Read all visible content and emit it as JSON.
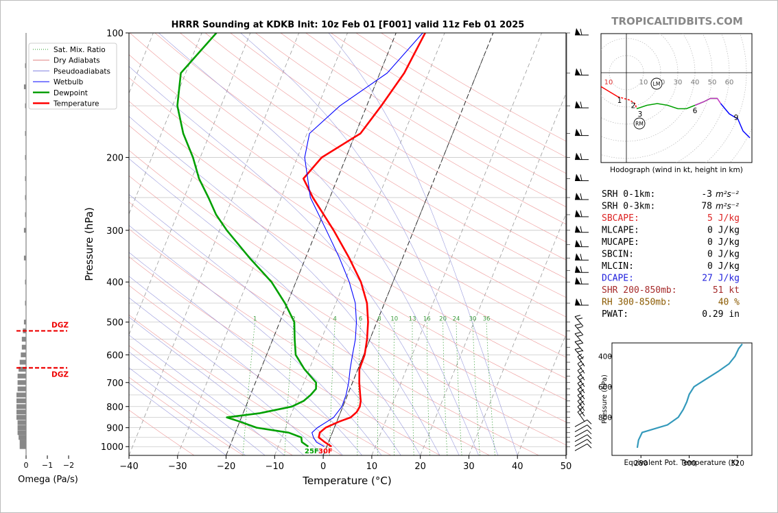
{
  "header": {
    "title": "HRRR Sounding at KDKB Init: 10z Feb 01 [F001] valid 11z Feb 01 2025",
    "watermark": "TROPICALTIDBITS.COM"
  },
  "legend": [
    {
      "label": "Sat. Mix. Ratio",
      "color": "#2a9a2a",
      "style": "dotted"
    },
    {
      "label": "Dry Adiabats",
      "color": "#e08080",
      "style": "solid"
    },
    {
      "label": "Pseudoadiabats",
      "color": "#8080e0",
      "style": "solid"
    },
    {
      "label": "Wetbulb",
      "color": "#0000ff",
      "style": "solid"
    },
    {
      "label": "Dewpoint",
      "color": "#00a000",
      "style": "thick"
    },
    {
      "label": "Temperature",
      "color": "#ff0000",
      "style": "thick"
    }
  ],
  "chart_data": [
    {
      "type": "line",
      "name": "skew-t",
      "xlabel": "Temperature (°C)",
      "ylabel": "Pressure (hPa)",
      "x_ticks": [
        "−40",
        "−30",
        "−20",
        "−10",
        "0",
        "10",
        "20",
        "30",
        "40",
        "50"
      ],
      "y_ticks": [
        "100",
        "200",
        "300",
        "400",
        "500",
        "600",
        "700",
        "800",
        "900",
        "1000"
      ],
      "xlim": [
        -40,
        50
      ],
      "ylim": [
        1050,
        100
      ],
      "y_scale": "log",
      "mixing_ratio_labels": [
        "1",
        "2",
        "4",
        "6",
        "8",
        "10",
        "13",
        "16",
        "20",
        "24",
        "30",
        "36"
      ],
      "surface_labels": {
        "dewpoint": "25F",
        "temperature": "30F"
      },
      "series": [
        {
          "name": "Temperature",
          "color": "#ff0000",
          "points": [
            [
              1000,
              1.0
            ],
            [
              975,
              -0.8
            ],
            [
              950,
              -2.4
            ],
            [
              925,
              -2.6
            ],
            [
              900,
              -1.8
            ],
            [
              870,
              0.5
            ],
            [
              850,
              2.5
            ],
            [
              825,
              3.3
            ],
            [
              800,
              3.5
            ],
            [
              775,
              3.2
            ],
            [
              750,
              2.6
            ],
            [
              700,
              1.4
            ],
            [
              650,
              0.3
            ],
            [
              600,
              0.2
            ],
            [
              550,
              -0.6
            ],
            [
              500,
              -1.8
            ],
            [
              450,
              -3.6
            ],
            [
              400,
              -6.6
            ],
            [
              350,
              -11.0
            ],
            [
              300,
              -16.5
            ],
            [
              250,
              -23.5
            ],
            [
              225,
              -27.0
            ],
            [
              200,
              -25.0
            ],
            [
              175,
              -19.0
            ],
            [
              150,
              -17.0
            ],
            [
              125,
              -15.0
            ],
            [
              100,
              -14.0
            ]
          ]
        },
        {
          "name": "Wetbulb",
          "color": "#0000ff",
          "points": [
            [
              1000,
              -0.5
            ],
            [
              975,
              -2.5
            ],
            [
              950,
              -3.5
            ],
            [
              925,
              -4.2
            ],
            [
              900,
              -3.5
            ],
            [
              870,
              -2.0
            ],
            [
              850,
              -1.0
            ],
            [
              800,
              -0.2
            ],
            [
              750,
              -0.3
            ],
            [
              700,
              -0.8
            ],
            [
              650,
              -1.6
            ],
            [
              600,
              -2.3
            ],
            [
              550,
              -3.0
            ],
            [
              500,
              -4.2
            ],
            [
              450,
              -6.0
            ],
            [
              400,
              -9.0
            ],
            [
              350,
              -13.0
            ],
            [
              300,
              -18.0
            ],
            [
              250,
              -24.0
            ],
            [
              200,
              -28.5
            ],
            [
              175,
              -29.5
            ],
            [
              150,
              -25.5
            ],
            [
              125,
              -18.5
            ],
            [
              100,
              -14.5
            ]
          ]
        },
        {
          "name": "Dewpoint",
          "color": "#00a000",
          "points": [
            [
              1000,
              -3.8
            ],
            [
              975,
              -5.5
            ],
            [
              950,
              -6.0
            ],
            [
              925,
              -9.0
            ],
            [
              900,
              -16.0
            ],
            [
              870,
              -20.0
            ],
            [
              850,
              -23.0
            ],
            [
              830,
              -16.5
            ],
            [
              800,
              -10.5
            ],
            [
              775,
              -8.5
            ],
            [
              750,
              -7.6
            ],
            [
              725,
              -7.0
            ],
            [
              700,
              -7.5
            ],
            [
              650,
              -11.0
            ],
            [
              600,
              -14.0
            ],
            [
              550,
              -15.5
            ],
            [
              500,
              -17.0
            ],
            [
              450,
              -20.5
            ],
            [
              400,
              -25.0
            ],
            [
              350,
              -31.5
            ],
            [
              300,
              -38.5
            ],
            [
              275,
              -42.0
            ],
            [
              250,
              -45.0
            ],
            [
              225,
              -48.5
            ],
            [
              200,
              -51.5
            ],
            [
              175,
              -55.5
            ],
            [
              150,
              -59.0
            ],
            [
              125,
              -61.0
            ],
            [
              100,
              -57.0
            ]
          ]
        }
      ],
      "wind_barbs_pressure": [
        100,
        125,
        150,
        175,
        200,
        225,
        250,
        275,
        300,
        325,
        350,
        375,
        400,
        450,
        500,
        525,
        550,
        575,
        600,
        625,
        650,
        675,
        700,
        725,
        750,
        775,
        800,
        825,
        850,
        875,
        900,
        925,
        950,
        975,
        1000
      ]
    },
    {
      "type": "bar",
      "name": "omega",
      "xlabel": "Omega (Pa/s)",
      "x_ticks": [
        "0",
        "−1",
        "−2"
      ],
      "dgz_label": "DGZ",
      "dgz_bounds_hpa": [
        525,
        645
      ],
      "values": [
        {
          "p": 1000,
          "w": -0.3
        },
        {
          "p": 975,
          "w": -0.3
        },
        {
          "p": 950,
          "w": -0.35
        },
        {
          "p": 925,
          "w": -0.4
        },
        {
          "p": 900,
          "w": -0.4
        },
        {
          "p": 875,
          "w": -0.4
        },
        {
          "p": 850,
          "w": -0.45
        },
        {
          "p": 825,
          "w": -0.45
        },
        {
          "p": 800,
          "w": -0.45
        },
        {
          "p": 775,
          "w": -0.45
        },
        {
          "p": 750,
          "w": -0.45
        },
        {
          "p": 725,
          "w": -0.4
        },
        {
          "p": 700,
          "w": -0.4
        },
        {
          "p": 675,
          "w": -0.4
        },
        {
          "p": 650,
          "w": -0.35
        },
        {
          "p": 625,
          "w": -0.3
        },
        {
          "p": 600,
          "w": -0.25
        },
        {
          "p": 575,
          "w": -0.2
        },
        {
          "p": 550,
          "w": -0.2
        },
        {
          "p": 525,
          "w": -0.15
        },
        {
          "p": 500,
          "w": -0.1
        },
        {
          "p": 450,
          "w": -0.05
        },
        {
          "p": 400,
          "w": -0.05
        },
        {
          "p": 350,
          "w": -0.1
        },
        {
          "p": 300,
          "w": -0.1
        },
        {
          "p": 275,
          "w": -0.05
        },
        {
          "p": 250,
          "w": -0.05
        },
        {
          "p": 225,
          "w": -0.05
        },
        {
          "p": 200,
          "w": -0.05
        },
        {
          "p": 175,
          "w": -0.05
        },
        {
          "p": 150,
          "w": -0.05
        },
        {
          "p": 135,
          "w": -0.1
        },
        {
          "p": 120,
          "w": -0.05
        }
      ]
    },
    {
      "type": "line",
      "name": "hodograph",
      "xlabel": "Hodograph (wind in kt, height in km)",
      "ring_labels": [
        "10",
        "10",
        "20",
        "30",
        "40",
        "50",
        "60"
      ],
      "height_labels": [
        "1",
        "2",
        "3",
        "6",
        "9"
      ],
      "storm_motion_labels": [
        "LM",
        "RM"
      ],
      "segments": [
        {
          "color": "#ff0000",
          "points": [
            [
              -15,
              -8
            ],
            [
              -10,
              -11
            ],
            [
              -5,
              -14
            ]
          ]
        },
        {
          "color": "#ff0000",
          "dashed": true,
          "points": [
            [
              -5,
              -14
            ],
            [
              2,
              -16
            ],
            [
              5,
              -18
            ],
            [
              6,
              -21
            ]
          ]
        },
        {
          "color": "#00a000",
          "points": [
            [
              6,
              -21
            ],
            [
              12,
              -19
            ],
            [
              18,
              -18
            ],
            [
              24,
              -19
            ],
            [
              30,
              -21
            ],
            [
              35,
              -21
            ],
            [
              40,
              -19
            ],
            [
              45,
              -17
            ],
            [
              49,
              -15
            ],
            [
              53,
              -15
            ]
          ]
        },
        {
          "color": "#c030c0",
          "points": [
            [
              40,
              -19
            ],
            [
              45,
              -17
            ],
            [
              49,
              -15
            ],
            [
              53,
              -15
            ],
            [
              55,
              -18
            ]
          ]
        },
        {
          "color": "#0000ff",
          "points": [
            [
              55,
              -18
            ],
            [
              60,
              -24
            ],
            [
              65,
              -27
            ],
            [
              68,
              -34
            ],
            [
              72,
              -38
            ]
          ]
        }
      ]
    },
    {
      "type": "line",
      "name": "equivalent-potential-temperature",
      "xlabel": "Equivalent Pot. Temperature (K)",
      "ylabel": "Pressure (hPa)",
      "x_ticks": [
        "280",
        "300",
        "320"
      ],
      "y_ticks": [
        "400",
        "600",
        "800"
      ],
      "color": "#3399bb",
      "points": [
        [
          1000,
          278.5
        ],
        [
          950,
          279.0
        ],
        [
          900,
          280.5
        ],
        [
          850,
          291.0
        ],
        [
          800,
          295.5
        ],
        [
          750,
          297.5
        ],
        [
          700,
          299.0
        ],
        [
          650,
          300.0
        ],
        [
          600,
          302.0
        ],
        [
          550,
          307.0
        ],
        [
          500,
          312.0
        ],
        [
          450,
          316.5
        ],
        [
          400,
          319.0
        ],
        [
          350,
          320.5
        ],
        [
          320,
          322.0
        ]
      ]
    }
  ],
  "indices": [
    {
      "label": "SRH 0-1km:",
      "value": "-3",
      "unit": "m²s⁻²",
      "color": "#000000"
    },
    {
      "label": "SRH 0-3km:",
      "value": "78",
      "unit": "m²s⁻²",
      "color": "#000000"
    },
    {
      "label": "SBCAPE:",
      "value": "5 J/kg",
      "color": "#dd2222"
    },
    {
      "label": "MLCAPE:",
      "value": "0 J/kg",
      "color": "#000000"
    },
    {
      "label": "MUCAPE:",
      "value": "0 J/kg",
      "color": "#000000"
    },
    {
      "label": "SBCIN:",
      "value": "0 J/kg",
      "color": "#000000"
    },
    {
      "label": "MLCIN:",
      "value": "0 J/kg",
      "color": "#000000"
    },
    {
      "label": "DCAPE:",
      "value": "27 J/kg",
      "color": "#2222dd"
    },
    {
      "label": "SHR 200-850mb:",
      "value": "51 kt",
      "color": "#a52a2a"
    },
    {
      "label": "RH 300-850mb:",
      "value": "40 %",
      "color": "#8b5a00"
    },
    {
      "label": "PWAT:",
      "value": "0.29 in",
      "color": "#000000"
    }
  ]
}
